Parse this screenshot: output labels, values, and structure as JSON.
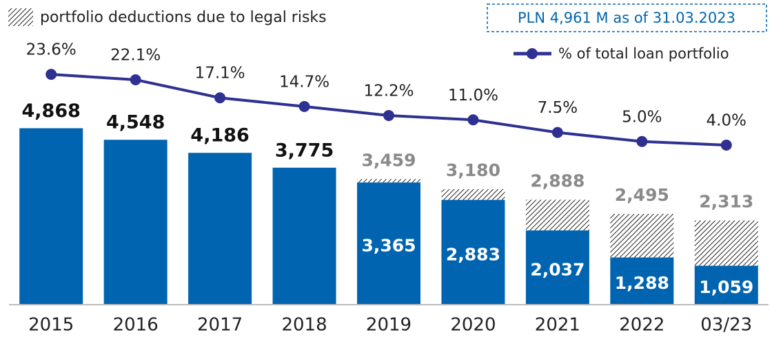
{
  "chart_data": {
    "type": "bar",
    "annotation": "PLN 4,961 M as of 31.03.2023",
    "categories": [
      "2015",
      "2016",
      "2017",
      "2018",
      "2019",
      "2020",
      "2021",
      "2022",
      "03/23"
    ],
    "ylim": [
      0,
      8000
    ],
    "y2lim": [
      -40,
      40
    ],
    "series": [
      {
        "name": "portfolio deductions due to legal risks",
        "type": "bar",
        "color": "#0064b0",
        "values": [
          4868,
          4548,
          4186,
          3775,
          3459,
          3180,
          2888,
          2495,
          2313
        ],
        "value_labels": [
          "4,868",
          "4,548",
          "4,186",
          "3,775",
          "3,459",
          "3,180",
          "2,888",
          "2,495",
          "2,313"
        ],
        "net_values": [
          null,
          null,
          null,
          null,
          3365,
          2883,
          2037,
          1288,
          1059
        ],
        "net_labels": [
          null,
          null,
          null,
          null,
          "3,365",
          "2,883",
          "2,037",
          "1,288",
          "1,059"
        ]
      },
      {
        "name": "% of total loan portfolio",
        "type": "line",
        "axis": "y2",
        "color": "#2e3192",
        "values": [
          23.6,
          22.1,
          17.1,
          14.7,
          12.2,
          11.0,
          7.5,
          5.0,
          4.0
        ],
        "value_labels": [
          "23.6%",
          "22.1%",
          "17.1%",
          "14.7%",
          "12.2%",
          "11.0%",
          "7.5%",
          "5.0%",
          "4.0%"
        ]
      }
    ]
  }
}
